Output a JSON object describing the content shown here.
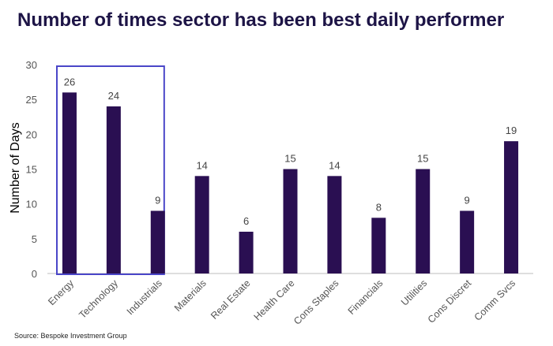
{
  "title": "Number of times sector has been best daily performer",
  "source": "Source: Bespoke Investment Group",
  "chart_data": {
    "type": "bar",
    "title": "Number of times sector has been best daily performer",
    "xlabel": "",
    "ylabel": "Number of Days",
    "ylim": [
      0,
      30
    ],
    "yticks": [
      0,
      5,
      10,
      15,
      20,
      25,
      30
    ],
    "categories": [
      "Energy",
      "Technology",
      "Industrials",
      "Materials",
      "Real Estate",
      "Health Care",
      "Cons Staples",
      "Financials",
      "Utilities",
      "Cons Discret",
      "Comm Svcs"
    ],
    "values": [
      26,
      24,
      9,
      14,
      6,
      15,
      14,
      8,
      15,
      9,
      19
    ],
    "data_labels": true,
    "grid": false,
    "bar_color": "#2a0f52",
    "highlight": {
      "categories": [
        "Energy",
        "Technology"
      ],
      "color": "#4a46c8"
    }
  }
}
